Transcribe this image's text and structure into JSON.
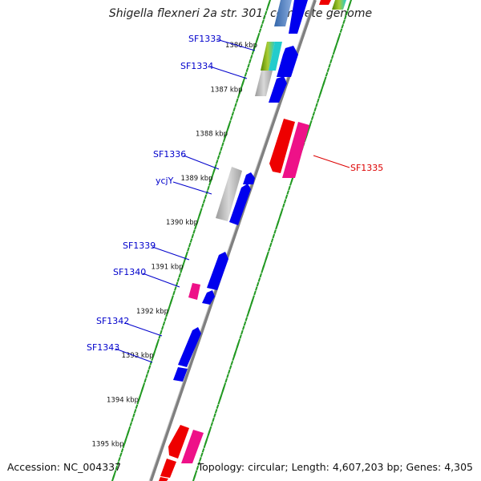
{
  "title": "Shigella flexneri 2a str. 301, complete genome",
  "footer": {
    "accession": "Accession: NC_004337",
    "summary": "Topology: circular; Length: 4,607,203 bp; Genes: 4,305"
  },
  "colors": {
    "forward_gene": "#0000ee",
    "reverse_gene": "#ee0000",
    "pink_gene": "#ee1188",
    "gray_gene": "#b0b0b0",
    "backbone": "#808080",
    "tick_dots": "#229922",
    "label_blue": "#0000cc",
    "label_red": "#dd0000"
  },
  "ruler": [
    {
      "label": "1386 kbp",
      "pos": 1386
    },
    {
      "label": "1387 kbp",
      "pos": 1387
    },
    {
      "label": "1388 kbp",
      "pos": 1388
    },
    {
      "label": "1389 kbp",
      "pos": 1389
    },
    {
      "label": "1390 kbp",
      "pos": 1390
    },
    {
      "label": "1391 kbp",
      "pos": 1391
    },
    {
      "label": "1392 kbp",
      "pos": 1392
    },
    {
      "label": "1393 kbp",
      "pos": 1393
    },
    {
      "label": "1394 kbp",
      "pos": 1394
    },
    {
      "label": "1395 kbp",
      "pos": 1395
    }
  ],
  "gene_labels": [
    {
      "name": "SF1333",
      "strand": "forward"
    },
    {
      "name": "SF1334",
      "strand": "forward"
    },
    {
      "name": "SF1335",
      "strand": "reverse"
    },
    {
      "name": "SF1336",
      "strand": "forward"
    },
    {
      "name": "ycjY",
      "strand": "forward"
    },
    {
      "name": "SF1339",
      "strand": "forward"
    },
    {
      "name": "SF1340",
      "strand": "forward"
    },
    {
      "name": "SF1342",
      "strand": "forward"
    },
    {
      "name": "SF1343",
      "strand": "forward"
    }
  ]
}
